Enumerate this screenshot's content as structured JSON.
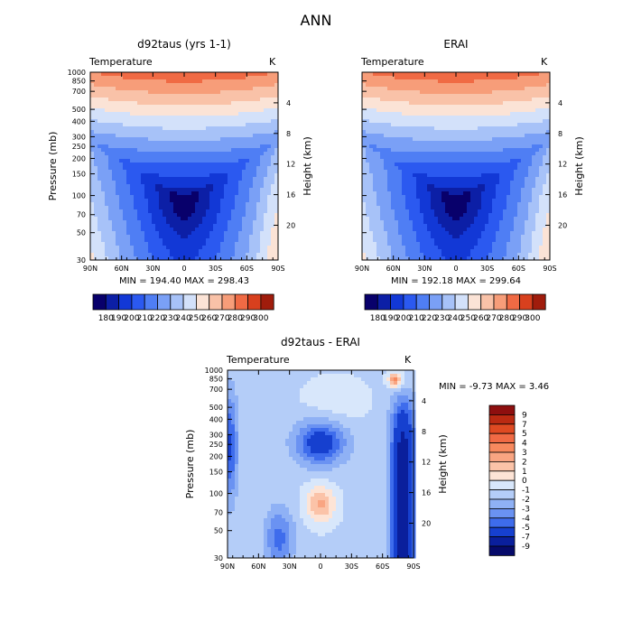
{
  "figure": {
    "title": "ANN"
  },
  "chart_data": [
    {
      "type": "heatmap",
      "title": "d92taus (yrs 1-1)",
      "field_label": "Temperature",
      "units": "K",
      "ylabel": "Pressure (mb)",
      "ylabel_right": "Height (km)",
      "x_ticks": [
        "90N",
        "60N",
        "30N",
        "0",
        "30S",
        "60S",
        "90S"
      ],
      "y_ticks": [
        "30",
        "50",
        "70",
        "100",
        "150",
        "200",
        "250",
        "300",
        "400",
        "500",
        "700",
        "850",
        "1000"
      ],
      "y_ticks_right": [
        "20",
        "16",
        "12",
        "8",
        "4"
      ],
      "x_range": [
        90,
        -90
      ],
      "y_range_mb": [
        1000,
        30
      ],
      "stats": "MIN = 194.40   MAX = 298.43",
      "min": 194.4,
      "max": 298.43,
      "colorbar": {
        "orientation": "horizontal",
        "labels": [
          "180",
          "190",
          "200",
          "210",
          "220",
          "230",
          "240",
          "250",
          "260",
          "270",
          "280",
          "290",
          "300"
        ],
        "levels": [
          180,
          190,
          200,
          210,
          220,
          230,
          240,
          250,
          260,
          270,
          280,
          290,
          300
        ],
        "colors": [
          "#08006b",
          "#0c1fa6",
          "#1238d6",
          "#2b59f0",
          "#4f7ef4",
          "#7aa0f6",
          "#a7c2f8",
          "#d3e1fa",
          "#fbe3d6",
          "#f9c2a8",
          "#f79d79",
          "#f06a44",
          "#d8401e",
          "#a01c0c"
        ]
      }
    },
    {
      "type": "heatmap",
      "title": "ERAI",
      "field_label": "Temperature",
      "units": "K",
      "ylabel_right": "Height (km)",
      "x_ticks": [
        "90N",
        "60N",
        "30N",
        "0",
        "30S",
        "60S",
        "90S"
      ],
      "y_ticks_right": [
        "20",
        "16",
        "12",
        "8",
        "4"
      ],
      "x_range": [
        90,
        -90
      ],
      "y_range_mb": [
        1000,
        30
      ],
      "stats": "MIN = 192.18   MAX = 299.64",
      "min": 192.18,
      "max": 299.64,
      "colorbar": {
        "orientation": "horizontal",
        "labels": [
          "180",
          "190",
          "200",
          "210",
          "220",
          "230",
          "240",
          "250",
          "260",
          "270",
          "280",
          "290",
          "300"
        ],
        "levels": [
          180,
          190,
          200,
          210,
          220,
          230,
          240,
          250,
          260,
          270,
          280,
          290,
          300
        ],
        "colors": [
          "#08006b",
          "#0c1fa6",
          "#1238d6",
          "#2b59f0",
          "#4f7ef4",
          "#7aa0f6",
          "#a7c2f8",
          "#d3e1fa",
          "#fbe3d6",
          "#f9c2a8",
          "#f79d79",
          "#f06a44",
          "#d8401e",
          "#a01c0c"
        ]
      }
    },
    {
      "type": "heatmap",
      "title": "d92taus - ERAI",
      "field_label": "Temperature",
      "units": "K",
      "ylabel": "Pressure (mb)",
      "ylabel_right": "Height (km)",
      "x_ticks": [
        "90N",
        "60N",
        "30N",
        "0",
        "30S",
        "60S",
        "90S"
      ],
      "y_ticks": [
        "30",
        "50",
        "70",
        "100",
        "150",
        "200",
        "250",
        "300",
        "400",
        "500",
        "700",
        "850",
        "1000"
      ],
      "y_ticks_right": [
        "20",
        "16",
        "12",
        "8",
        "4"
      ],
      "x_range": [
        90,
        -90
      ],
      "y_range_mb": [
        1000,
        30
      ],
      "stats": "MIN =  -9.73   MAX =   3.46",
      "min": -9.73,
      "max": 3.46,
      "colorbar": {
        "orientation": "vertical",
        "labels": [
          "9",
          "7",
          "5",
          "4",
          "3",
          "2",
          "1",
          "0",
          "-1",
          "-2",
          "-3",
          "-4",
          "-5",
          "-7",
          "-9"
        ],
        "levels": [
          9,
          7,
          5,
          4,
          3,
          2,
          1,
          0,
          -1,
          -2,
          -3,
          -4,
          -5,
          -7,
          -9
        ],
        "colors": [
          "#8e0f0f",
          "#bb2a12",
          "#df4a22",
          "#f06a44",
          "#f7895e",
          "#f9a582",
          "#fbc3a8",
          "#fde4d6",
          "#d8e7fb",
          "#b4cdf8",
          "#8fb1f5",
          "#6a92f2",
          "#3e6cec",
          "#1640cf",
          "#0a1f9c",
          "#060a6a"
        ]
      }
    }
  ]
}
